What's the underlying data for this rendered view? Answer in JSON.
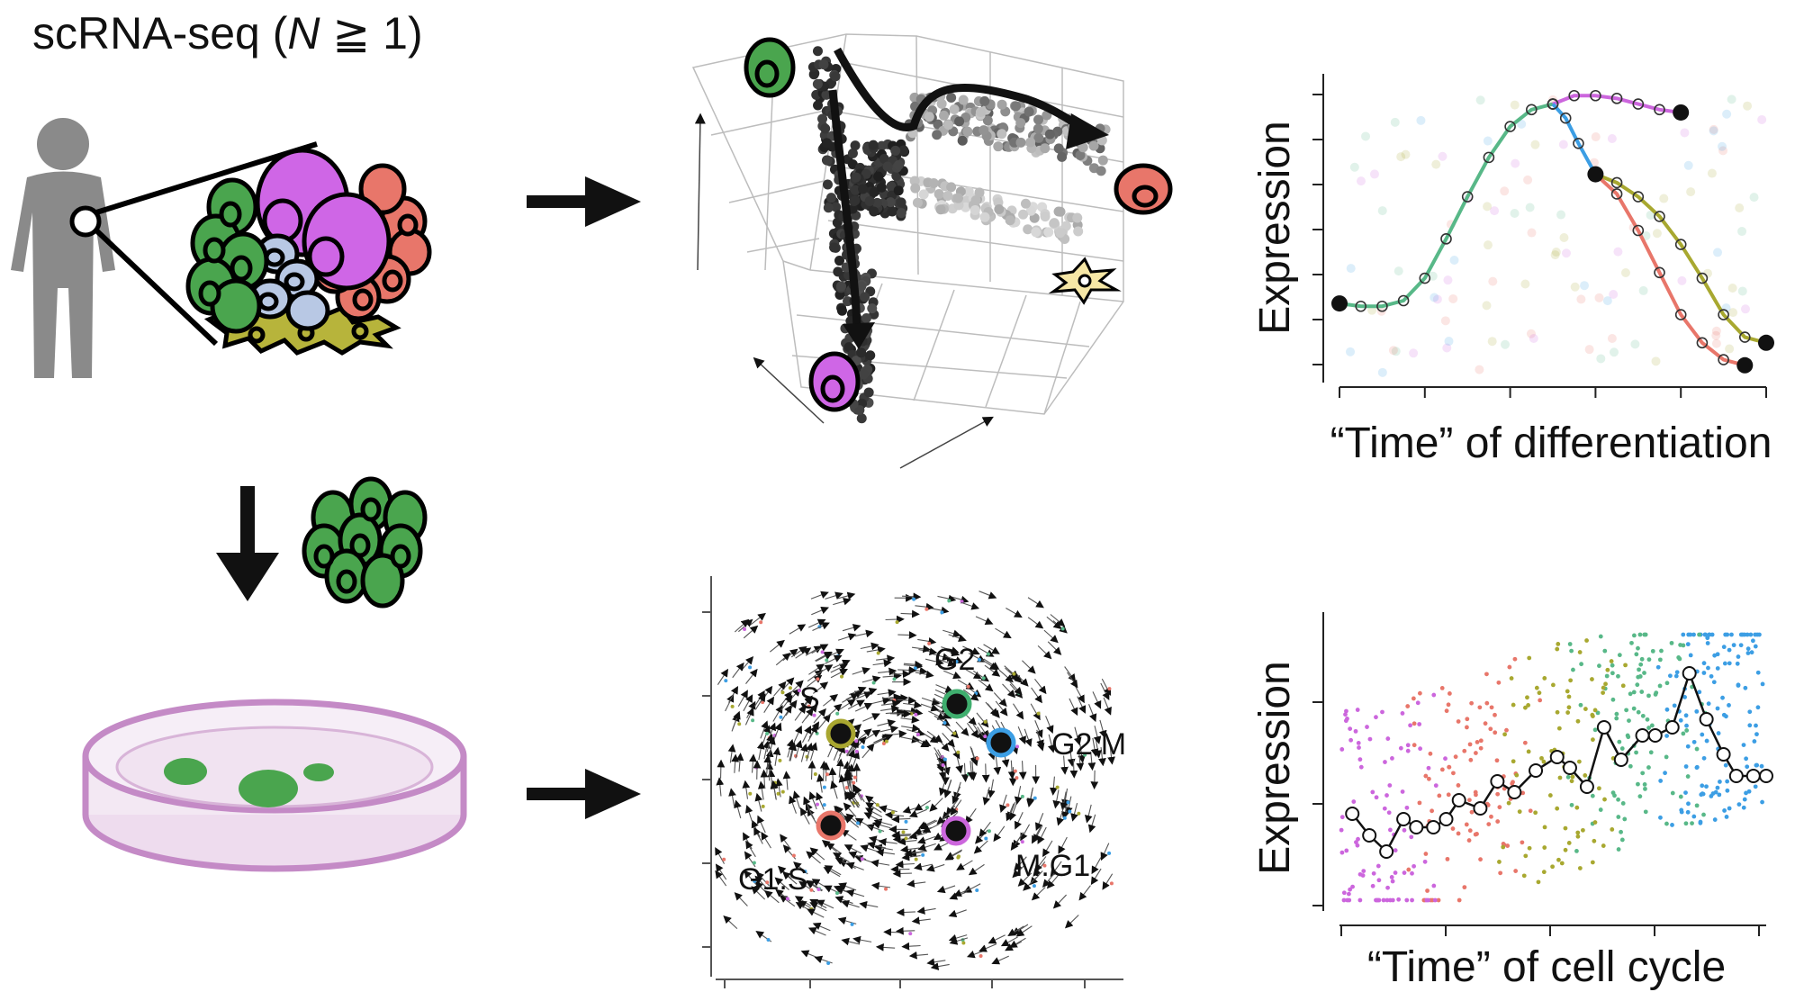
{
  "colors": {
    "green": "#4aa54e",
    "magenta": "#cf66e6",
    "salmon": "#e8766a",
    "lightblue": "#b8c8e4",
    "olive": "#b7b43b",
    "dish": "#c48ac6",
    "human": "#8a8a8a",
    "arrow": "#111111",
    "curve_green": "#58b888",
    "curve_blue": "#3c9ee4",
    "curve_magenta": "#cc66dd",
    "curve_olive": "#a8a830",
    "curve_salmon": "#e8766a",
    "phase_S": "#a8a630",
    "phase_G2": "#3fae6e",
    "phase_G2M": "#3c9ee4",
    "phase_G1S": "#e8766a",
    "phase_MG1": "#cc66dd"
  },
  "header": {
    "title_prefix": "scRNA-seq (",
    "title_italic": "N",
    "title_suffix": " ≧ 1)"
  },
  "icons": {
    "human": "human-silhouette-icon",
    "tissue": "cell-cluster-icon",
    "culture": "petri-dish-icon",
    "arrow": "right-arrow-icon"
  },
  "differentiation_plot": {
    "ylabel": "Expression",
    "xlabel": "“Time” of differentiation"
  },
  "cellcycle_plot": {
    "ylabel": "Expression",
    "xlabel": "“Time” of cell cycle"
  },
  "phase_map": {
    "labels": {
      "S": "S",
      "G2": "G2",
      "G2M": "G2.M",
      "G1S": "G1.S",
      "MG1": "M.G1"
    }
  },
  "chart_data": [
    {
      "type": "line",
      "xlabel": "“Time” of differentiation",
      "ylabel": "Expression",
      "series": [
        {
          "color": "#58b888",
          "x": [
            0.0,
            0.05,
            0.1,
            0.15,
            0.2,
            0.25,
            0.3,
            0.35,
            0.4,
            0.45,
            0.5
          ],
          "y": [
            0.24,
            0.23,
            0.23,
            0.25,
            0.33,
            0.47,
            0.62,
            0.76,
            0.87,
            0.93,
            0.95
          ]
        },
        {
          "color": "#cc66dd",
          "x": [
            0.5,
            0.55,
            0.6,
            0.65,
            0.7,
            0.75,
            0.8
          ],
          "y": [
            0.95,
            0.98,
            0.98,
            0.97,
            0.95,
            0.93,
            0.92
          ]
        },
        {
          "color": "#3c9ee4",
          "x": [
            0.5,
            0.53,
            0.56,
            0.6
          ],
          "y": [
            0.95,
            0.9,
            0.81,
            0.7
          ]
        },
        {
          "color": "#a8a830",
          "x": [
            0.6,
            0.65,
            0.7,
            0.75,
            0.8,
            0.85,
            0.9,
            0.95,
            1.0
          ],
          "y": [
            0.7,
            0.67,
            0.62,
            0.55,
            0.45,
            0.33,
            0.2,
            0.12,
            0.1
          ]
        },
        {
          "color": "#e8766a",
          "x": [
            0.6,
            0.65,
            0.7,
            0.75,
            0.8,
            0.85,
            0.9,
            0.95
          ],
          "y": [
            0.7,
            0.63,
            0.5,
            0.35,
            0.2,
            0.1,
            0.04,
            0.02
          ]
        }
      ]
    },
    {
      "type": "line",
      "xlabel": "“Time” of cell cycle",
      "ylabel": "Expression",
      "series": [
        {
          "color": "#111111",
          "x": [
            0.03,
            0.07,
            0.11,
            0.15,
            0.18,
            0.22,
            0.25,
            0.28,
            0.33,
            0.37,
            0.41,
            0.46,
            0.51,
            0.54,
            0.58,
            0.62,
            0.66,
            0.71,
            0.74,
            0.78,
            0.82,
            0.86,
            0.9,
            0.93,
            0.97,
            1.0
          ],
          "y": [
            0.32,
            0.24,
            0.18,
            0.3,
            0.27,
            0.27,
            0.3,
            0.37,
            0.34,
            0.44,
            0.4,
            0.48,
            0.53,
            0.49,
            0.42,
            0.64,
            0.52,
            0.61,
            0.61,
            0.64,
            0.84,
            0.67,
            0.54,
            0.46,
            0.46,
            0.46
          ]
        }
      ]
    }
  ]
}
